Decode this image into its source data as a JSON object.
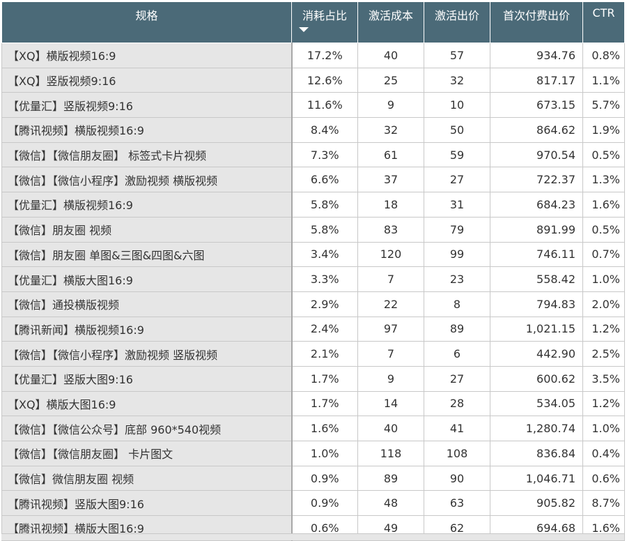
{
  "headers": {
    "spec": "规格",
    "share": "消耗占比",
    "act_cost": "激活成本",
    "act_bid": "激活出价",
    "first_pay_bid": "首次付费出价",
    "ctr": "CTR"
  },
  "sort": {
    "column": "share",
    "direction": "descending",
    "icon": "sort-down-icon"
  },
  "rows": [
    {
      "spec": "【XQ】横版视频16:9",
      "share": "17.2%",
      "act_cost": "40",
      "act_bid": "57",
      "first_pay_bid": "934.76",
      "ctr": "0.8%"
    },
    {
      "spec": "【XQ】竖版视频9:16",
      "share": "12.6%",
      "act_cost": "25",
      "act_bid": "32",
      "first_pay_bid": "817.17",
      "ctr": "1.1%"
    },
    {
      "spec": "【优量汇】竖版视频9:16",
      "share": "11.6%",
      "act_cost": "9",
      "act_bid": "10",
      "first_pay_bid": "673.15",
      "ctr": "5.7%"
    },
    {
      "spec": "【腾讯视频】横版视频16:9",
      "share": "8.4%",
      "act_cost": "32",
      "act_bid": "50",
      "first_pay_bid": "864.62",
      "ctr": "1.9%"
    },
    {
      "spec": "【微信】【微信朋友圈】 标签式卡片视频",
      "share": "7.3%",
      "act_cost": "61",
      "act_bid": "59",
      "first_pay_bid": "970.54",
      "ctr": "0.5%"
    },
    {
      "spec": "【微信】【微信小程序】激励视频 横版视频",
      "share": "6.6%",
      "act_cost": "37",
      "act_bid": "27",
      "first_pay_bid": "722.37",
      "ctr": "1.3%"
    },
    {
      "spec": "【优量汇】横版视频16:9",
      "share": "5.8%",
      "act_cost": "18",
      "act_bid": "31",
      "first_pay_bid": "684.23",
      "ctr": "1.6%"
    },
    {
      "spec": "【微信】朋友圈 视频",
      "share": "5.8%",
      "act_cost": "83",
      "act_bid": "79",
      "first_pay_bid": "891.99",
      "ctr": "0.5%"
    },
    {
      "spec": "【微信】朋友圈 单图&三图&四图&六图",
      "share": "3.4%",
      "act_cost": "120",
      "act_bid": "99",
      "first_pay_bid": "746.11",
      "ctr": "0.7%"
    },
    {
      "spec": "【优量汇】横版大图16:9",
      "share": "3.3%",
      "act_cost": "7",
      "act_bid": "23",
      "first_pay_bid": "558.42",
      "ctr": "1.0%"
    },
    {
      "spec": "【微信】通投横版视频",
      "share": "2.9%",
      "act_cost": "22",
      "act_bid": "8",
      "first_pay_bid": "794.83",
      "ctr": "2.0%"
    },
    {
      "spec": "【腾讯新闻】横版视频16:9",
      "share": "2.4%",
      "act_cost": "97",
      "act_bid": "89",
      "first_pay_bid": "1,021.15",
      "ctr": "1.2%"
    },
    {
      "spec": "【微信】【微信小程序】激励视频 竖版视频",
      "share": "2.1%",
      "act_cost": "7",
      "act_bid": "6",
      "first_pay_bid": "442.90",
      "ctr": "2.5%"
    },
    {
      "spec": "【优量汇】竖版大图9:16",
      "share": "1.7%",
      "act_cost": "9",
      "act_bid": "27",
      "first_pay_bid": "600.62",
      "ctr": "3.5%"
    },
    {
      "spec": "【XQ】横版大图16:9",
      "share": "1.7%",
      "act_cost": "14",
      "act_bid": "28",
      "first_pay_bid": "534.05",
      "ctr": "1.2%"
    },
    {
      "spec": "【微信】【微信公众号】底部 960*540视频",
      "share": "1.6%",
      "act_cost": "40",
      "act_bid": "41",
      "first_pay_bid": "1,280.74",
      "ctr": "1.0%"
    },
    {
      "spec": "【微信】【微信朋友圈】 卡片图文",
      "share": "1.0%",
      "act_cost": "118",
      "act_bid": "108",
      "first_pay_bid": "836.84",
      "ctr": "0.4%"
    },
    {
      "spec": "【微信】微信朋友圈 视频",
      "share": "0.9%",
      "act_cost": "89",
      "act_bid": "90",
      "first_pay_bid": "1,046.71",
      "ctr": "0.6%"
    },
    {
      "spec": "【腾讯视频】竖版大图9:16",
      "share": "0.9%",
      "act_cost": "48",
      "act_bid": "63",
      "first_pay_bid": "905.82",
      "ctr": "8.7%"
    },
    {
      "spec": "【腾讯视频】横版大图16:9",
      "share": "0.6%",
      "act_cost": "49",
      "act_bid": "62",
      "first_pay_bid": "694.68",
      "ctr": "1.6%"
    }
  ],
  "colors": {
    "header_bg": "#4b6a78",
    "name_col_bg": "#e6e6e6",
    "text": "#333333"
  }
}
